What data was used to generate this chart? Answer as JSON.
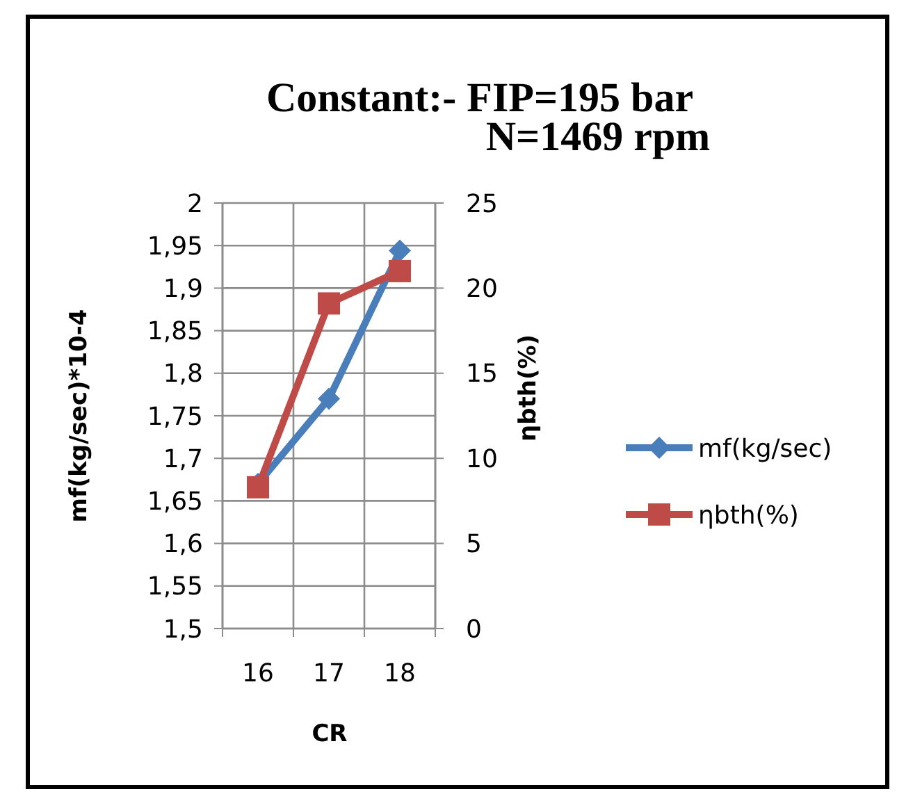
{
  "chart_data": {
    "type": "line",
    "title": "Constant:- FIP=195 bar",
    "subtitle": "N=1469 rpm",
    "xlabel": "CR",
    "ylabel": "mf(kg/sec)*10-4",
    "y2label": "ηbth(%)",
    "categories": [
      "16",
      "17",
      "18"
    ],
    "series": [
      {
        "name": "mf(kg/sec)",
        "color": "#4a7ebb",
        "values": [
          1.67,
          1.77,
          1.944
        ],
        "marker": "diamond"
      },
      {
        "name": "ηbth(%)",
        "color": "#be4b48",
        "values": [
          8.3,
          19.1,
          21.0
        ],
        "marker": "square",
        "axis": "y2"
      }
    ],
    "ylim": [
      1.5,
      2
    ],
    "yticks": [
      {
        "value": 1.5,
        "label": "1,5"
      },
      {
        "value": 1.55,
        "label": "1,55"
      },
      {
        "value": 1.6,
        "label": "1,6"
      },
      {
        "value": 1.65,
        "label": "1,65"
      },
      {
        "value": 1.7,
        "label": "1,7"
      },
      {
        "value": 1.75,
        "label": "1,75"
      },
      {
        "value": 1.8,
        "label": "1,8"
      },
      {
        "value": 1.85,
        "label": "1,85"
      },
      {
        "value": 1.9,
        "label": "1,9"
      },
      {
        "value": 1.95,
        "label": "1,95"
      },
      {
        "value": 2,
        "label": "2"
      }
    ],
    "y2lim": [
      0,
      25
    ],
    "y2ticks": [
      0,
      5,
      10,
      15,
      20,
      25
    ],
    "grid": true,
    "legend": "right",
    "line_style": "solid"
  }
}
